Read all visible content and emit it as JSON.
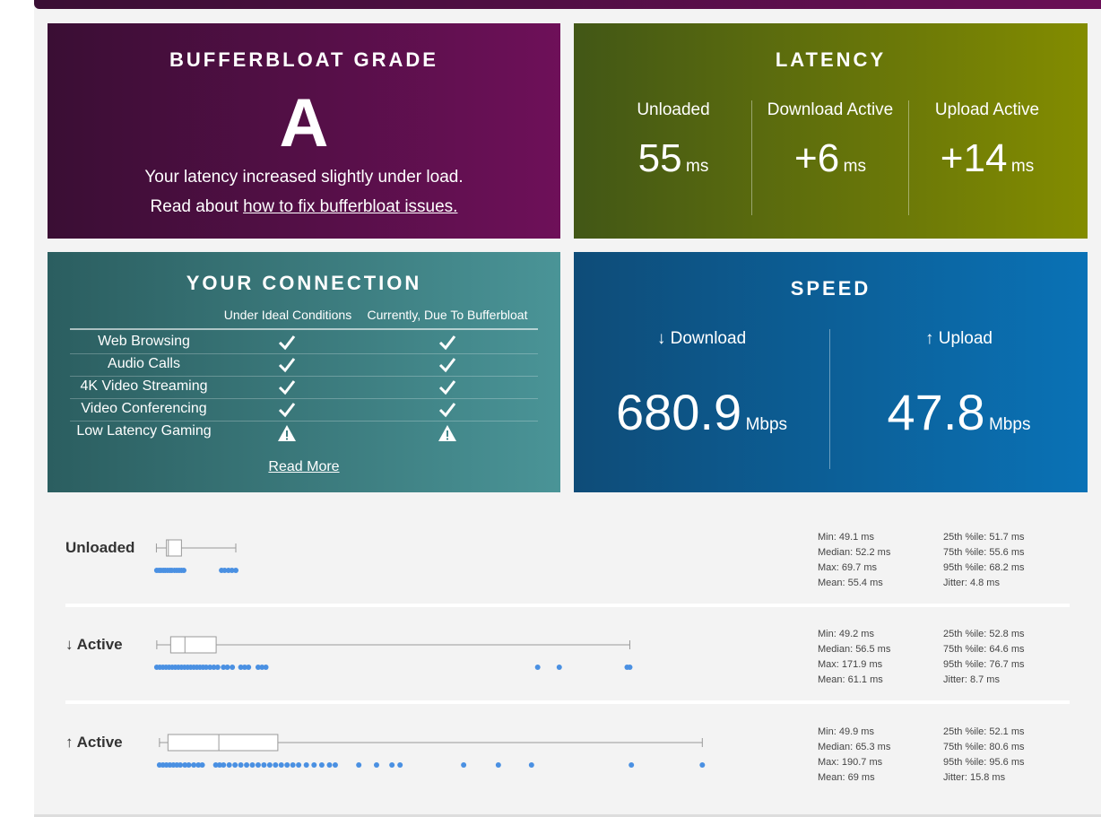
{
  "grade_card": {
    "title": "BUFFERBLOAT GRADE",
    "grade": "A",
    "message": "Your latency increased slightly under load.",
    "read_prefix": "Read about",
    "read_link": "how to fix bufferbloat issues."
  },
  "latency_card": {
    "title": "LATENCY",
    "columns": [
      {
        "label": "Unloaded",
        "value": "55",
        "unit": "ms"
      },
      {
        "label": "Download Active",
        "value": "+6",
        "unit": "ms"
      },
      {
        "label": "Upload Active",
        "value": "+14",
        "unit": "ms"
      }
    ]
  },
  "connection_card": {
    "title": "YOUR CONNECTION",
    "headers": [
      "Under Ideal Conditions",
      "Currently, Due To Bufferbloat"
    ],
    "rows": [
      "Web Browsing",
      "Audio Calls",
      "4K Video Streaming",
      "Video Conferencing",
      "Low Latency Gaming"
    ],
    "read_more": "Read More"
  },
  "speed_card": {
    "title": "SPEED",
    "columns": [
      {
        "label": "↓ Download",
        "value": "680.9",
        "unit": "Mbps"
      },
      {
        "label": "↑ Upload",
        "value": "47.8",
        "unit": "Mbps"
      }
    ]
  },
  "latency_rows": [
    {
      "label": "Unloaded",
      "stats": {
        "min": {
          "value": 49.1,
          "label": "Min: 49.1 ms"
        },
        "median": {
          "value": 52.2,
          "label": "Median: 52.2 ms"
        },
        "max": {
          "value": 69.7,
          "label": "Max: 69.7 ms"
        },
        "mean": {
          "value": 55.4,
          "label": "Mean: 55.4 ms"
        },
        "p25": {
          "value": 51.7,
          "label": "25th %ile: 51.7 ms"
        },
        "p75": {
          "value": 55.6,
          "label": "75th %ile: 55.6 ms"
        },
        "p95": {
          "value": 68.2,
          "label": "95th %ile: 68.2 ms"
        },
        "jitter": {
          "value": 4.8,
          "label": "Jitter: 4.8 ms"
        }
      },
      "samples": [
        49.2,
        49.8,
        50.3,
        50.9,
        51.4,
        52.0,
        52.6,
        53.1,
        53.8,
        54.4,
        55.0,
        55.6,
        56.2,
        66.0,
        66.8,
        67.8,
        68.7,
        69.7
      ]
    },
    {
      "label": "↓ Active",
      "stats": {
        "min": {
          "value": 49.2,
          "label": "Min: 49.2 ms"
        },
        "median": {
          "value": 56.5,
          "label": "Median: 56.5 ms"
        },
        "max": {
          "value": 171.9,
          "label": "Max: 171.9 ms"
        },
        "mean": {
          "value": 61.1,
          "label": "Mean: 61.1 ms"
        },
        "p25": {
          "value": 52.8,
          "label": "25th %ile: 52.8 ms"
        },
        "p75": {
          "value": 64.6,
          "label": "75th %ile: 64.6 ms"
        },
        "p95": {
          "value": 76.7,
          "label": "95th %ile: 76.7 ms"
        },
        "jitter": {
          "value": 8.7,
          "label": "Jitter: 8.7 ms"
        }
      },
      "samples": [
        49.2,
        50.0,
        50.8,
        51.6,
        52.4,
        53.2,
        54.0,
        54.8,
        55.6,
        56.4,
        57.2,
        58.0,
        58.8,
        59.6,
        60.4,
        61.2,
        62.0,
        63.0,
        64.0,
        65.0,
        66.5,
        67.5,
        68.8,
        71.0,
        72.0,
        73.0,
        75.5,
        76.5,
        77.5,
        148.0,
        153.6,
        171.2,
        171.9
      ]
    },
    {
      "label": "↑ Active",
      "stats": {
        "min": {
          "value": 49.9,
          "label": "Min: 49.9 ms"
        },
        "median": {
          "value": 65.3,
          "label": "Median: 65.3 ms"
        },
        "max": {
          "value": 190.7,
          "label": "Max: 190.7 ms"
        },
        "mean": {
          "value": 69,
          "label": "Mean: 69 ms"
        },
        "p25": {
          "value": 52.1,
          "label": "25th %ile: 52.1 ms"
        },
        "p75": {
          "value": 80.6,
          "label": "75th %ile: 80.6 ms"
        },
        "p95": {
          "value": 95.6,
          "label": "95th %ile: 95.6 ms"
        },
        "jitter": {
          "value": 15.8,
          "label": "Jitter: 15.8 ms"
        }
      },
      "samples": [
        49.9,
        50.8,
        51.7,
        52.6,
        53.5,
        54.4,
        55.3,
        56.5,
        57.5,
        58.8,
        60.0,
        61.0,
        64.5,
        65.5,
        66.5,
        68.0,
        69.5,
        71.0,
        72.5,
        74.0,
        75.5,
        77.0,
        78.5,
        80.0,
        81.5,
        83.0,
        84.5,
        86.0,
        88.0,
        90.0,
        92.0,
        94.0,
        95.5,
        101.6,
        106.2,
        110.2,
        112.3,
        128.8,
        137.8,
        146.4,
        172.3,
        190.7
      ]
    }
  ]
}
